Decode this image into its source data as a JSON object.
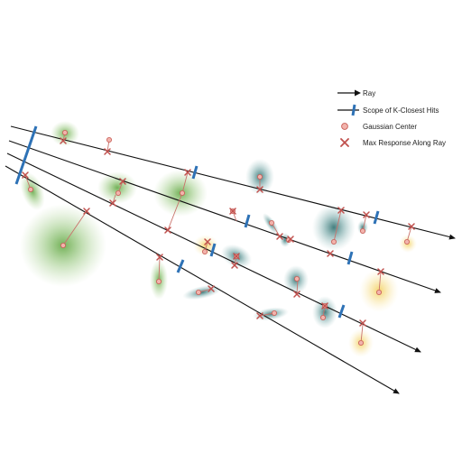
{
  "colors": {
    "ray": "#111111",
    "scope": "#2e72b6",
    "center_fill": "#f2b3ac",
    "center_stroke": "#c85c55",
    "max_response": "#c0504d",
    "connector": "#c9726b",
    "gaussian_green": "#6aae46",
    "gaussian_teal": "#3a7f7f",
    "gaussian_yellow": "#f2cf55"
  },
  "legend": {
    "items": [
      {
        "label": "Ray",
        "icon": "arrow-icon"
      },
      {
        "label": "Scope of K-Closest Hits",
        "icon": "scope-bar-icon"
      },
      {
        "label": "Gaussian Center",
        "icon": "circle-icon"
      },
      {
        "label": "Max Response Along Ray",
        "icon": "cross-icon"
      }
    ]
  }
}
